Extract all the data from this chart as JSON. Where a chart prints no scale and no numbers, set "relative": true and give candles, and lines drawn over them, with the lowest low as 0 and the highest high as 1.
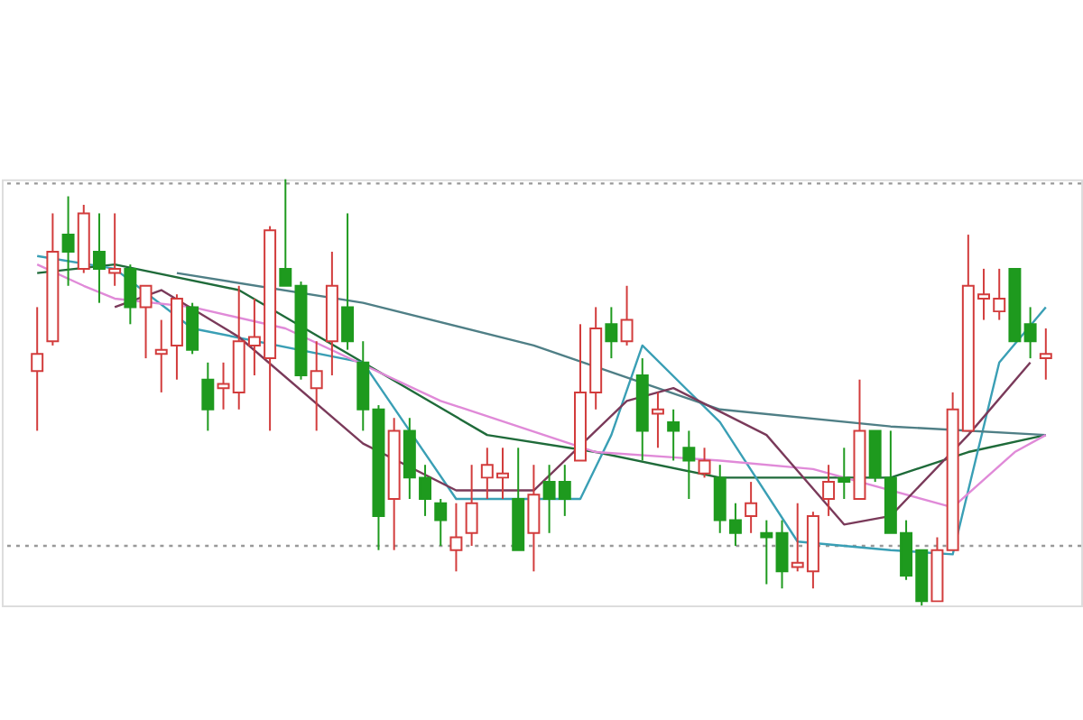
{
  "chart_data": {
    "type": "candlestick",
    "relative": true,
    "tick_labels": false,
    "categories": [
      null,
      null,
      null,
      null,
      null,
      null,
      null,
      null,
      null,
      null,
      null,
      null,
      null,
      null,
      null,
      null,
      null,
      null,
      null,
      null,
      null,
      null,
      null,
      null,
      null,
      null,
      null,
      null,
      null,
      null,
      null,
      null,
      null,
      null,
      null,
      null,
      null,
      null,
      null,
      null,
      null,
      null,
      null,
      null,
      null,
      null,
      null,
      null,
      null,
      null,
      null,
      null,
      null,
      null,
      null,
      null,
      null,
      null,
      null,
      null,
      null,
      null,
      null,
      null,
      null,
      null
    ],
    "ohlc": [
      [
        0.55,
        0.7,
        0.41,
        0.59
      ],
      [
        0.62,
        0.92,
        0.61,
        0.83
      ],
      [
        0.87,
        0.96,
        0.75,
        0.83
      ],
      [
        0.79,
        0.94,
        0.78,
        0.92
      ],
      [
        0.83,
        0.92,
        0.71,
        0.79
      ],
      [
        0.78,
        0.92,
        0.75,
        0.79
      ],
      [
        0.79,
        0.8,
        0.66,
        0.7
      ],
      [
        0.7,
        0.75,
        0.58,
        0.75
      ],
      [
        0.59,
        0.67,
        0.5,
        0.6
      ],
      [
        0.61,
        0.73,
        0.53,
        0.72
      ],
      [
        0.7,
        0.71,
        0.59,
        0.6
      ],
      [
        0.53,
        0.57,
        0.41,
        0.46
      ],
      [
        0.51,
        0.57,
        0.46,
        0.52
      ],
      [
        0.5,
        0.75,
        0.46,
        0.62
      ],
      [
        0.61,
        0.72,
        0.54,
        0.63
      ],
      [
        0.58,
        0.89,
        0.41,
        0.88
      ],
      [
        0.79,
        1,
        0.75,
        0.75
      ],
      [
        0.75,
        0.76,
        0.53,
        0.54
      ],
      [
        0.51,
        0.62,
        0.41,
        0.55
      ],
      [
        0.62,
        0.83,
        0.54,
        0.75
      ],
      [
        0.7,
        0.92,
        0.6,
        0.62
      ],
      [
        0.57,
        0.62,
        0.41,
        0.46
      ],
      [
        0.46,
        0.47,
        0.13,
        0.21
      ],
      [
        0.25,
        0.44,
        0.13,
        0.41
      ],
      [
        0.41,
        0.44,
        0.25,
        0.3
      ],
      [
        0.3,
        0.33,
        0.21,
        0.25
      ],
      [
        0.24,
        0.25,
        0.14,
        0.2
      ],
      [
        0.13,
        0.24,
        0.08,
        0.16
      ],
      [
        0.17,
        0.33,
        0.14,
        0.24
      ],
      [
        0.3,
        0.37,
        0.25,
        0.33
      ],
      [
        0.3,
        0.37,
        0.25,
        0.31
      ],
      [
        0.25,
        0.37,
        0.13,
        0.13
      ],
      [
        0.17,
        0.33,
        0.08,
        0.26
      ],
      [
        0.29,
        0.33,
        0.17,
        0.25
      ],
      [
        0.29,
        0.33,
        0.21,
        0.25
      ],
      [
        0.34,
        0.66,
        0.34,
        0.5
      ],
      [
        0.5,
        0.7,
        0.46,
        0.65
      ],
      [
        0.66,
        0.7,
        0.58,
        0.62
      ],
      [
        0.62,
        0.75,
        0.61,
        0.67
      ],
      [
        0.54,
        0.58,
        0.34,
        0.41
      ],
      [
        0.45,
        0.5,
        0.37,
        0.46
      ],
      [
        0.43,
        0.46,
        0.34,
        0.41
      ],
      [
        0.37,
        0.41,
        0.25,
        0.34
      ],
      [
        0.31,
        0.37,
        0.3,
        0.34
      ],
      [
        0.3,
        0.33,
        0.17,
        0.2
      ],
      [
        0.2,
        0.24,
        0.14,
        0.17
      ],
      [
        0.21,
        0.29,
        0.17,
        0.24
      ],
      [
        0.17,
        0.2,
        0.05,
        0.16
      ],
      [
        0.17,
        0.2,
        0.04,
        0.08
      ],
      [
        0.09,
        0.24,
        0.08,
        0.1
      ],
      [
        0.08,
        0.22,
        0.04,
        0.21
      ],
      [
        0.25,
        0.33,
        0.21,
        0.29
      ],
      [
        0.3,
        0.37,
        0.25,
        0.29
      ],
      [
        0.25,
        0.53,
        0.25,
        0.41
      ],
      [
        0.41,
        0.41,
        0.29,
        0.3
      ],
      [
        0.3,
        0.41,
        0.17,
        0.17
      ],
      [
        0.17,
        0.2,
        0.06,
        0.07
      ],
      [
        0.13,
        0.13,
        0,
        0.01
      ],
      [
        0.01,
        0.16,
        0.01,
        0.13
      ],
      [
        0.13,
        0.5,
        0.13,
        0.46
      ],
      [
        0.41,
        0.87,
        0.41,
        0.75
      ],
      [
        0.72,
        0.79,
        0.67,
        0.73
      ],
      [
        0.69,
        0.79,
        0.67,
        0.72
      ],
      [
        0.79,
        0.79,
        0.62,
        0.62
      ],
      [
        0.66,
        0.7,
        0.58,
        0.62
      ],
      [
        0.58,
        0.65,
        0.53,
        0.59
      ]
    ],
    "colors": [
      "#d23c3c",
      "#d23c3c",
      "#1e9a1e",
      "#d23c3c",
      "#1e9a1e",
      "#d23c3c",
      "#1e9a1e",
      "#d23c3c",
      "#d23c3c",
      "#d23c3c",
      "#1e9a1e",
      "#1e9a1e",
      "#d23c3c",
      "#d23c3c",
      "#d23c3c",
      "#d23c3c",
      "#1e9a1e",
      "#1e9a1e",
      "#d23c3c",
      "#d23c3c",
      "#1e9a1e",
      "#1e9a1e",
      "#1e9a1e",
      "#d23c3c",
      "#1e9a1e",
      "#1e9a1e",
      "#1e9a1e",
      "#d23c3c",
      "#d23c3c",
      "#d23c3c",
      "#d23c3c",
      "#1e9a1e",
      "#d23c3c",
      "#1e9a1e",
      "#1e9a1e",
      "#d23c3c",
      "#d23c3c",
      "#1e9a1e",
      "#d23c3c",
      "#1e9a1e",
      "#d23c3c",
      "#1e9a1e",
      "#1e9a1e",
      "#d23c3c",
      "#1e9a1e",
      "#1e9a1e",
      "#d23c3c",
      "#1e9a1e",
      "#1e9a1e",
      "#d23c3c",
      "#d23c3c",
      "#d23c3c",
      "#1e9a1e",
      "#d23c3c",
      "#1e9a1e",
      "#1e9a1e",
      "#1e9a1e",
      "#1e9a1e",
      "#d23c3c",
      "#d23c3c",
      "#d23c3c",
      "#d23c3c",
      "#d23c3c",
      "#1e9a1e",
      "#1e9a1e",
      "#d23c3c"
    ],
    "series": [
      {
        "type": "line",
        "color": "#1f6b3a",
        "values": [
          0.78,
          null,
          null,
          null,
          null,
          0.8,
          null,
          null,
          null,
          null,
          null,
          null,
          null,
          0.74,
          null,
          null,
          null,
          null,
          null,
          null,
          null,
          0.57,
          null,
          null,
          null,
          null,
          null,
          null,
          null,
          0.4,
          null,
          null,
          null,
          null,
          null,
          null,
          0.36,
          null,
          null,
          null,
          null,
          null,
          null,
          null,
          0.3,
          null,
          null,
          null,
          null,
          null,
          0.3,
          null,
          null,
          null,
          null,
          0.3,
          null,
          null,
          null,
          null,
          0.36,
          null,
          null,
          null,
          null,
          0.4
        ]
      },
      {
        "type": "line",
        "color": "#3a9fb5",
        "values": [
          0.82,
          null,
          null,
          null,
          null,
          0.79,
          null,
          null,
          null,
          null,
          0.65,
          null,
          null,
          null,
          null,
          null,
          null,
          null,
          null,
          null,
          null,
          0.57,
          null,
          null,
          null,
          null,
          null,
          0.25,
          null,
          null,
          null,
          null,
          null,
          null,
          null,
          0.25,
          null,
          0.4,
          null,
          0.61,
          null,
          null,
          null,
          null,
          0.43,
          null,
          null,
          null,
          null,
          0.15,
          null,
          null,
          null,
          null,
          null,
          0.13,
          null,
          null,
          null,
          0.12,
          null,
          null,
          0.57,
          null,
          null,
          0.7
        ]
      },
      {
        "type": "line",
        "color": "#4f7f86",
        "values": [
          null,
          null,
          null,
          null,
          null,
          null,
          null,
          null,
          null,
          0.78,
          null,
          null,
          null,
          null,
          null,
          null,
          null,
          null,
          null,
          null,
          null,
          0.71,
          null,
          null,
          null,
          null,
          null,
          null,
          null,
          null,
          null,
          null,
          0.61,
          null,
          null,
          null,
          null,
          null,
          null,
          null,
          null,
          null,
          null,
          null,
          0.46,
          null,
          null,
          null,
          null,
          null,
          null,
          null,
          null,
          null,
          null,
          0.42,
          null,
          null,
          null,
          null,
          null,
          null,
          null,
          null,
          null,
          0.4
        ]
      },
      {
        "type": "line",
        "color": "#e08ad8",
        "values": [
          0.8,
          null,
          null,
          0.75,
          null,
          0.72,
          null,
          null,
          null,
          null,
          0.7,
          null,
          null,
          null,
          null,
          null,
          0.65,
          null,
          null,
          null,
          null,
          null,
          null,
          null,
          null,
          null,
          0.48,
          null,
          null,
          null,
          null,
          null,
          null,
          null,
          null,
          null,
          0.36,
          null,
          null,
          null,
          null,
          null,
          null,
          null,
          0.34,
          null,
          null,
          null,
          null,
          null,
          0.32,
          null,
          null,
          null,
          null,
          null,
          null,
          null,
          null,
          0.23,
          null,
          null,
          null,
          0.36,
          null,
          0.4
        ]
      },
      {
        "type": "line",
        "color": "#7a3a5a",
        "values": [
          null,
          null,
          null,
          null,
          null,
          0.7,
          null,
          null,
          0.74,
          null,
          null,
          null,
          null,
          0.63,
          null,
          null,
          null,
          null,
          null,
          null,
          null,
          0.38,
          null,
          null,
          null,
          null,
          null,
          0.27,
          null,
          null,
          null,
          null,
          0.27,
          null,
          null,
          null,
          null,
          null,
          0.48,
          null,
          null,
          0.51,
          null,
          null,
          null,
          null,
          null,
          0.4,
          null,
          null,
          null,
          null,
          0.19,
          null,
          null,
          0.21,
          null,
          null,
          null,
          null,
          0.4,
          null,
          null,
          null,
          0.57,
          null
        ]
      }
    ],
    "ref_lines": [
      {
        "axis": "y",
        "value": 0.99,
        "color": "#999999",
        "line_style": "dotted"
      },
      {
        "axis": "y",
        "value": 0.14,
        "color": "#999999",
        "line_style": "dotted"
      }
    ]
  }
}
